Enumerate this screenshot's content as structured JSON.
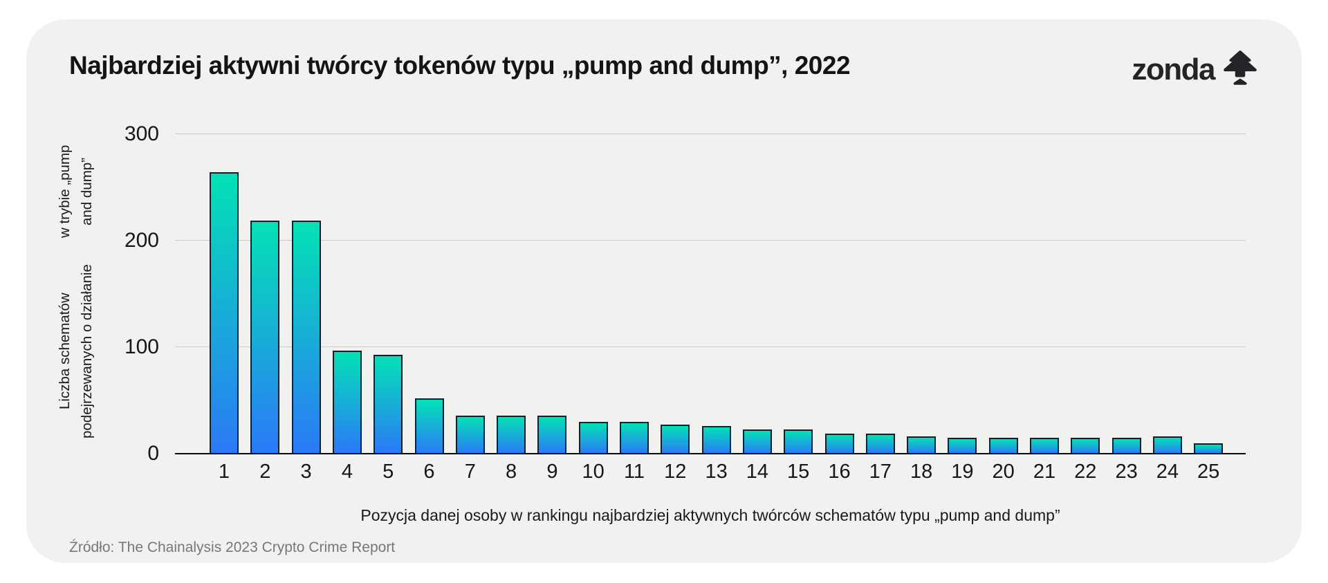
{
  "page": {
    "background_color": "#ffffff",
    "card_background_color": "#f1f1ef"
  },
  "header": {
    "logo_text": "zonda",
    "logo_icon": "tree-arrow-icon",
    "logo_color": "#232328"
  },
  "chart_data": {
    "type": "bar",
    "title": "Najbardziej aktywni twórcy tokenów typu „pump and dump”, 2022",
    "categories": [
      "1",
      "2",
      "3",
      "4",
      "5",
      "6",
      "7",
      "8",
      "9",
      "10",
      "11",
      "12",
      "13",
      "14",
      "15",
      "16",
      "17",
      "18",
      "19",
      "20",
      "21",
      "22",
      "23",
      "24",
      "25"
    ],
    "values": [
      264,
      219,
      219,
      97,
      93,
      52,
      36,
      36,
      36,
      30,
      30,
      27,
      26,
      23,
      23,
      19,
      19,
      16,
      15,
      15,
      15,
      15,
      15,
      16,
      10
    ],
    "xlabel": "Pozycja danej osoby w rankingu najbardziej aktywnych twórców schematów typu „pump and dump”",
    "ylabel_line1": "Liczba schematów podejrzewanych o działanie",
    "ylabel_line2": "w trybie „pump and dump”",
    "yticks": [
      0,
      100,
      200,
      300
    ],
    "ylim": [
      0,
      300
    ],
    "grid": true,
    "legend": "none",
    "bar_gradient_top_color": "#04e1b5",
    "bar_gradient_bottom_color": "#2b79f8",
    "bar_border_color": "#0d2230",
    "gridline_color": "#c9c9c9",
    "axis_line_color": "#0a0a0a"
  },
  "footer": {
    "source": "Źródło: The Chainalysis 2023 Crypto Crime Report"
  }
}
